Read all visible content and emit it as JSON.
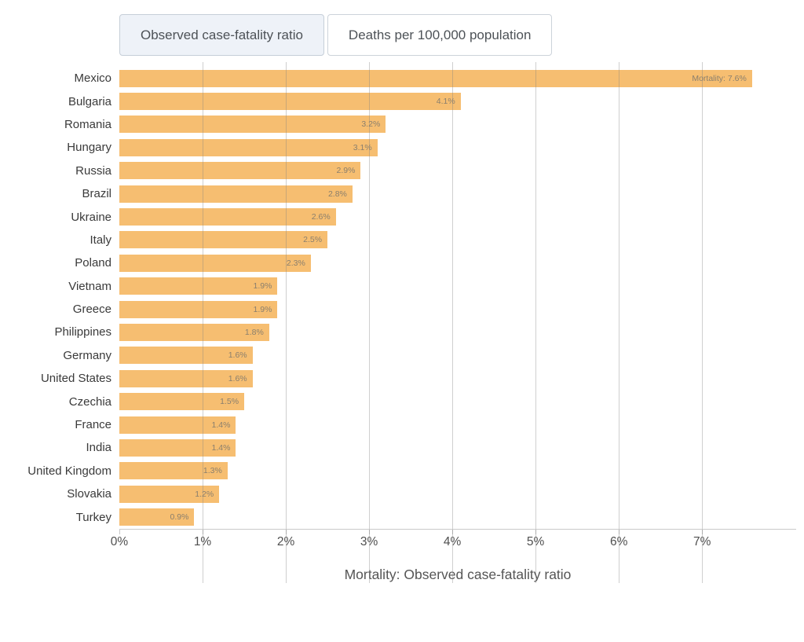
{
  "tabs": [
    {
      "label": "Observed case-fatality ratio",
      "selected": true
    },
    {
      "label": "Deaths per 100,000 population",
      "selected": false
    }
  ],
  "chart_data": {
    "type": "bar",
    "orientation": "horizontal",
    "title": "",
    "xlabel": "Mortality: Observed case-fatality ratio",
    "ylabel": "",
    "categories": [
      "Mexico",
      "Bulgaria",
      "Romania",
      "Hungary",
      "Russia",
      "Brazil",
      "Ukraine",
      "Italy",
      "Poland",
      "Vietnam",
      "Greece",
      "Philippines",
      "Germany",
      "United States",
      "Czechia",
      "France",
      "India",
      "United Kingdom",
      "Slovakia",
      "Turkey"
    ],
    "values": [
      7.6,
      4.1,
      3.2,
      3.1,
      2.9,
      2.8,
      2.6,
      2.5,
      2.3,
      1.9,
      1.9,
      1.8,
      1.6,
      1.6,
      1.5,
      1.4,
      1.4,
      1.3,
      1.2,
      0.9
    ],
    "bar_labels": [
      "Mortality: 7.6%",
      "4.1%",
      "3.2%",
      "3.1%",
      "2.9%",
      "2.8%",
      "2.6%",
      "2.5%",
      "2.3%",
      "1.9%",
      "1.9%",
      "1.8%",
      "1.6%",
      "1.6%",
      "1.5%",
      "1.4%",
      "1.4%",
      "1.3%",
      "1.2%",
      "0.9%"
    ],
    "x_ticks": [
      "0%",
      "1%",
      "2%",
      "3%",
      "4%",
      "5%",
      "6%",
      "7%"
    ],
    "x_tick_values": [
      0,
      1,
      2,
      3,
      4,
      5,
      6,
      7
    ],
    "xlim": [
      0,
      8.13
    ],
    "grid": true,
    "legend": "none",
    "colors": {
      "bar": "#f6be71",
      "grid": "#cfcfcf",
      "axis_line": "#c9c9c9",
      "category_label": "#3a3a3a",
      "value_label": "#8a7f6d",
      "tick_label": "#4f4f4f",
      "axis_title": "#555555",
      "tab_selected_bg": "#eef2f8",
      "tab_border": "#ccd3da"
    }
  }
}
